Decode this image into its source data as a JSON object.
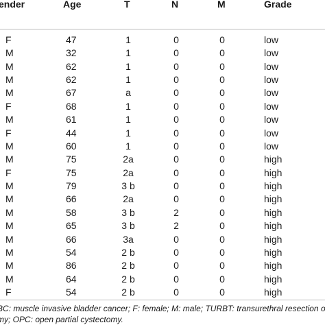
{
  "table": {
    "headers": {
      "gender": "ender",
      "age": "Age",
      "t": "T",
      "n": "N",
      "m": "M",
      "grade": "Grade"
    },
    "rows": [
      {
        "gender": "F",
        "age": "47",
        "t": "1",
        "n": "0",
        "m": "0",
        "grade": "low"
      },
      {
        "gender": "M",
        "age": "32",
        "t": "1",
        "n": "0",
        "m": "0",
        "grade": "low"
      },
      {
        "gender": "M",
        "age": "62",
        "t": "1",
        "n": "0",
        "m": "0",
        "grade": "low"
      },
      {
        "gender": "M",
        "age": "62",
        "t": "1",
        "n": "0",
        "m": "0",
        "grade": "low"
      },
      {
        "gender": "M",
        "age": "67",
        "t": "a",
        "n": "0",
        "m": "0",
        "grade": "low"
      },
      {
        "gender": "F",
        "age": "68",
        "t": "1",
        "n": "0",
        "m": "0",
        "grade": "low"
      },
      {
        "gender": "M",
        "age": "61",
        "t": "1",
        "n": "0",
        "m": "0",
        "grade": "low"
      },
      {
        "gender": "F",
        "age": "44",
        "t": "1",
        "n": "0",
        "m": "0",
        "grade": "low"
      },
      {
        "gender": "M",
        "age": "60",
        "t": "1",
        "n": "0",
        "m": "0",
        "grade": "low"
      },
      {
        "gender": "M",
        "age": "75",
        "t": "2a",
        "n": "0",
        "m": "0",
        "grade": "high"
      },
      {
        "gender": "F",
        "age": "75",
        "t": "2a",
        "n": "0",
        "m": "0",
        "grade": "high"
      },
      {
        "gender": "M",
        "age": "79",
        "t": "3 b",
        "n": "0",
        "m": "0",
        "grade": "high"
      },
      {
        "gender": "M",
        "age": "66",
        "t": "2a",
        "n": "0",
        "m": "0",
        "grade": "high"
      },
      {
        "gender": "M",
        "age": "58",
        "t": "3 b",
        "n": "2",
        "m": "0",
        "grade": "high"
      },
      {
        "gender": "M",
        "age": "65",
        "t": "3 b",
        "n": "2",
        "m": "0",
        "grade": "high"
      },
      {
        "gender": "M",
        "age": "66",
        "t": "3a",
        "n": "0",
        "m": "0",
        "grade": "high"
      },
      {
        "gender": "M",
        "age": "54",
        "t": "2 b",
        "n": "0",
        "m": "0",
        "grade": "high"
      },
      {
        "gender": "M",
        "age": "86",
        "t": "2 b",
        "n": "0",
        "m": "0",
        "grade": "high"
      },
      {
        "gender": "M",
        "age": "64",
        "t": "2 b",
        "n": "0",
        "m": "0",
        "grade": "high"
      },
      {
        "gender": "F",
        "age": "54",
        "t": "2 b",
        "n": "0",
        "m": "0",
        "grade": "high"
      }
    ]
  },
  "footnotes": {
    "line1": "BC: muscle invasive bladder cancer; F: female; M: male; TURBT: transurethral resection o",
    "line2": "my; OPC: open partial cystectomy."
  }
}
